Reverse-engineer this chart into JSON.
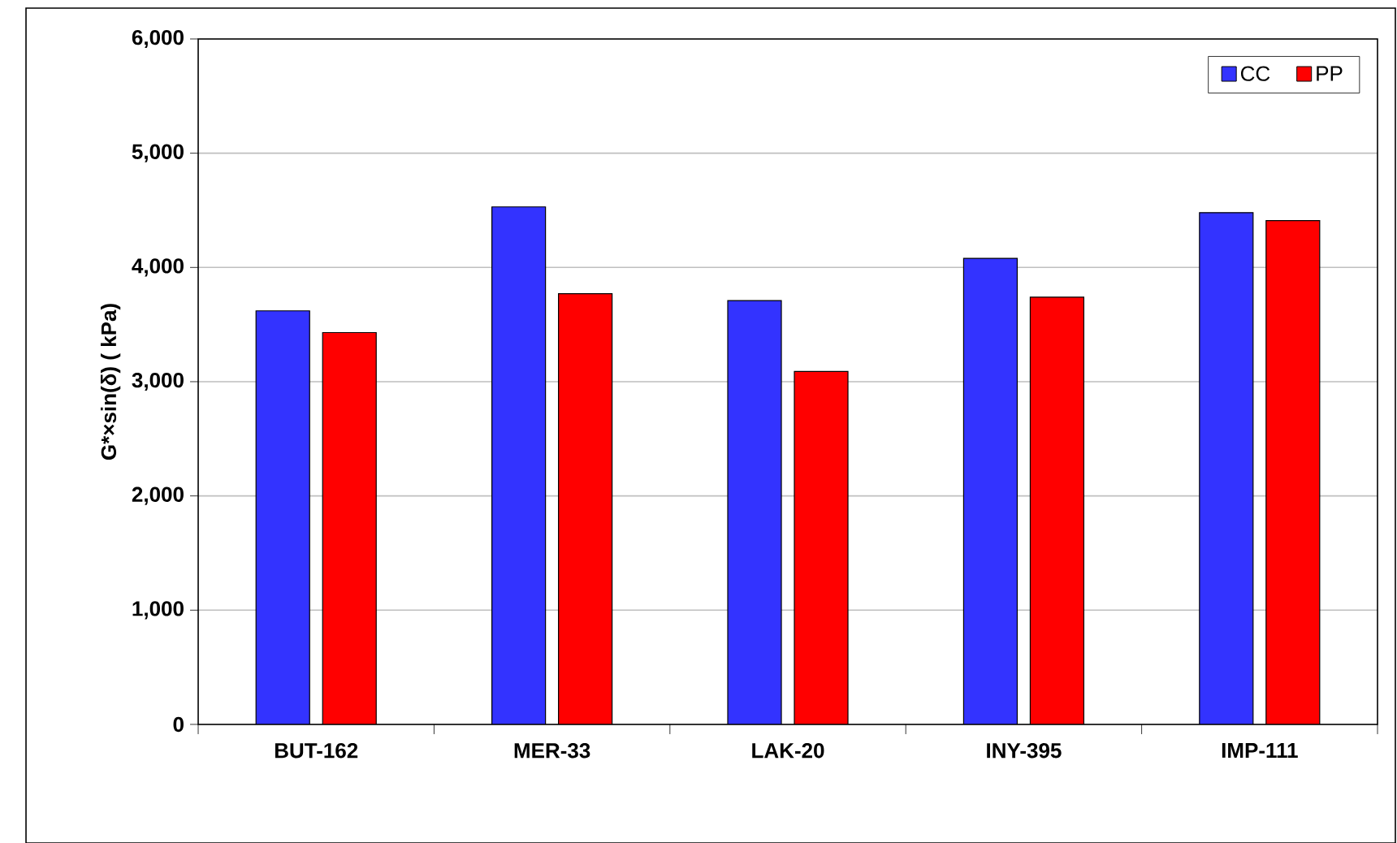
{
  "chart_data": {
    "type": "bar",
    "ylabel": "G*×sin(δ) ( kPa)",
    "categories": [
      "BUT-162",
      "MER-33",
      "LAK-20",
      "INY-395",
      "IMP-111"
    ],
    "series": [
      {
        "name": "CC",
        "color": "#3333ff",
        "values": [
          3620,
          4530,
          3710,
          4080,
          4480
        ]
      },
      {
        "name": "PP",
        "color": "#ff0000",
        "values": [
          3430,
          3770,
          3090,
          3740,
          4410
        ]
      }
    ],
    "ylim": [
      0,
      6000
    ],
    "yticks": [
      0,
      {
        "value": 1000,
        "label": "1,000"
      },
      {
        "value": 2000,
        "label": "2,000"
      },
      {
        "value": 3000,
        "label": "3,000"
      },
      {
        "value": 4000,
        "label": "4,000"
      },
      {
        "value": 5000,
        "label": "5,000"
      },
      {
        "value": 6000,
        "label": "6,000"
      }
    ],
    "grid": "y",
    "legend": "top right"
  }
}
